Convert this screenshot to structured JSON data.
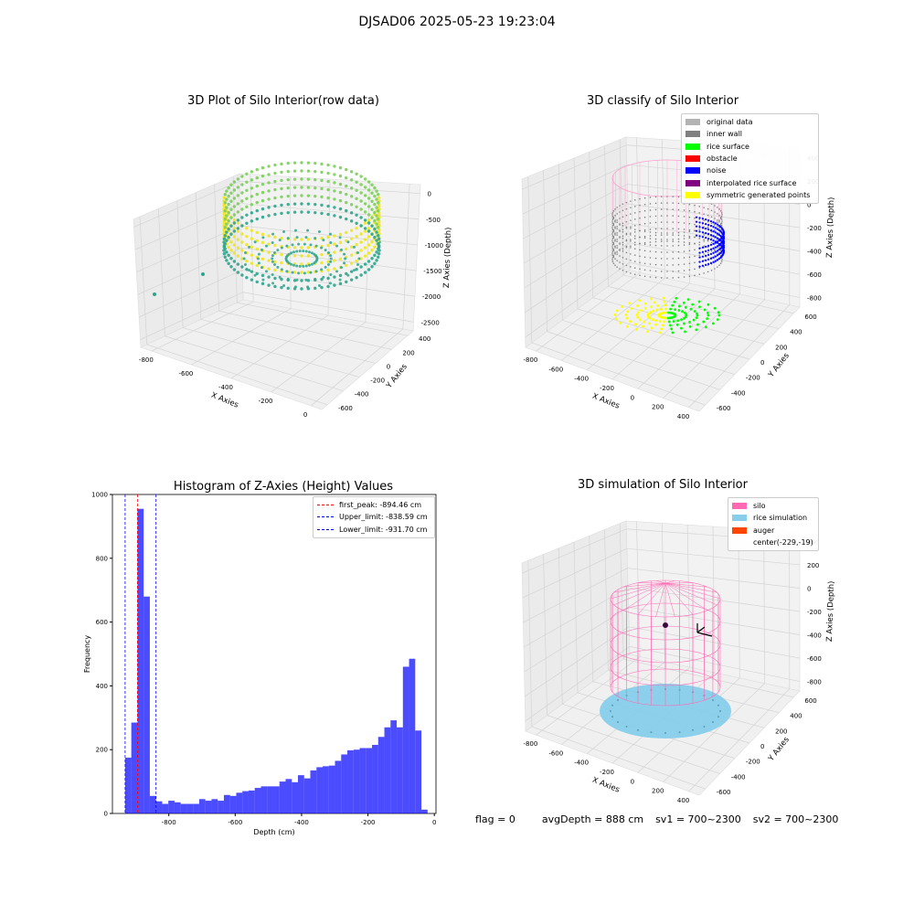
{
  "suptitle": "DJSAD06 2025-05-23 19:23:04",
  "panels": {
    "raw": {
      "title": "3D Plot of Silo Interior(row data)",
      "xlabel": "X Axies",
      "ylabel": "Y Axies",
      "zlabel": "Z Axies (Depth)",
      "xticks": [
        "-800",
        "-600",
        "-400",
        "-200",
        "0"
      ],
      "yticks": [
        "400",
        "200",
        "0",
        "-200",
        "-400",
        "-600"
      ],
      "zticks": [
        "0",
        "-500",
        "-1000",
        "-1500",
        "-2000",
        "-2500"
      ],
      "colors": {
        "low": "#2ca58d",
        "mid": "#7ccf5a",
        "high": "#f0e51f"
      }
    },
    "classify": {
      "title": "3D classify of Silo Interior",
      "xlabel": "X Axies",
      "ylabel": "Y Axies",
      "zlabel": "Z Axies (Depth)",
      "xticks": [
        "-800",
        "-600",
        "-400",
        "-200",
        "0",
        "200",
        "400"
      ],
      "yticks": [
        "600",
        "400",
        "200",
        "0",
        "-200",
        "-400",
        "-600"
      ],
      "zticks": [
        "400",
        "200",
        "0",
        "-200",
        "-400",
        "-600",
        "-800"
      ],
      "legend": [
        {
          "label": "original data",
          "color": "#b3b3b3"
        },
        {
          "label": "inner wall",
          "color": "#808080"
        },
        {
          "label": "rice surface",
          "color": "#00ff00"
        },
        {
          "label": "obstacle",
          "color": "#ff0000"
        },
        {
          "label": "noise",
          "color": "#0000ff"
        },
        {
          "label": "interpolated rice surface",
          "color": "#800080"
        },
        {
          "label": "symmetric generated points",
          "color": "#ffff00"
        }
      ]
    },
    "histogram": {
      "title": "Histogram of Z-Axies (Height) Values",
      "legend": [
        {
          "label": "first_peak: -894.46 cm",
          "color": "#ff0000"
        },
        {
          "label": "Upper_limit: -838.59 cm",
          "color": "#0000ff"
        },
        {
          "label": "Lower_limit: -931.70 cm",
          "color": "#0000ff"
        }
      ]
    },
    "simulation": {
      "title": "3D simulation of Silo Interior",
      "xlabel": "X Axies",
      "ylabel": "Y Axies",
      "zlabel": "Z Axies (Depth)",
      "xticks": [
        "-800",
        "-600",
        "-400",
        "-200",
        "0",
        "200",
        "400"
      ],
      "yticks": [
        "600",
        "400",
        "200",
        "0",
        "-200",
        "-400",
        "-600"
      ],
      "zticks": [
        "400",
        "200",
        "0",
        "-200",
        "-400",
        "-600",
        "-800"
      ],
      "legend": [
        {
          "label": "silo",
          "color": "#ff69b4"
        },
        {
          "label": "rice simulation",
          "color": "#87ceeb"
        },
        {
          "label": "auger",
          "color": "#ff4500"
        },
        {
          "label": "center(-229,-19)",
          "color": ""
        }
      ]
    }
  },
  "footer": {
    "flag": "flag = 0",
    "avg_depth": "avgDepth = 888 cm",
    "sv1": "sv1 = 700~2300",
    "sv2": "sv2 = 700~2300"
  },
  "chart_data": {
    "type": "bar",
    "title": "Histogram of Z-Axies (Height) Values",
    "xlabel": "Depth (cm)",
    "ylabel": "Frequency",
    "xlim": [
      -970,
      5
    ],
    "ylim": [
      0,
      1000
    ],
    "xticks": [
      -800,
      -600,
      -400,
      -200,
      0
    ],
    "yticks": [
      0,
      200,
      400,
      600,
      800,
      1000
    ],
    "bin_width": 18.6,
    "bin_start": -931.7,
    "values": [
      175,
      285,
      955,
      680,
      55,
      38,
      30,
      40,
      35,
      30,
      30,
      30,
      45,
      40,
      45,
      40,
      58,
      55,
      65,
      70,
      72,
      80,
      85,
      85,
      85,
      100,
      108,
      98,
      120,
      110,
      135,
      145,
      148,
      150,
      165,
      185,
      198,
      200,
      205,
      205,
      215,
      240,
      270,
      292,
      270,
      460,
      485,
      260,
      12
    ],
    "color": "#0000ff",
    "vlines": [
      {
        "x": -894.46,
        "color": "#ff0000"
      },
      {
        "x": -838.59,
        "color": "#0000ff"
      },
      {
        "x": -931.7,
        "color": "#0000ff"
      }
    ],
    "legend_position": "upper right"
  }
}
